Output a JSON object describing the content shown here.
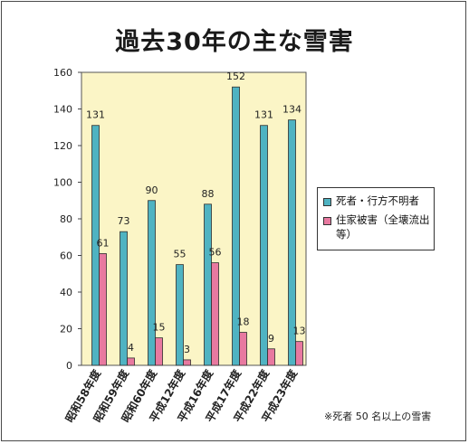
{
  "title": "過去30年の主な雪害",
  "footnote": "※死者 50 名以上の雪害",
  "chart_data": {
    "type": "bar",
    "categories": [
      "昭和58年度",
      "昭和59年度",
      "昭和60年度",
      "平成12年度",
      "平成16年度",
      "平成17年度",
      "平成22年度",
      "平成23年度"
    ],
    "series": [
      {
        "name": "死者・行方不明者",
        "color": "#4fb3c2",
        "values": [
          131,
          73,
          90,
          55,
          88,
          152,
          131,
          134
        ]
      },
      {
        "name": "住家被害（全壊流出等）",
        "color": "#e879a0",
        "values": [
          61,
          4,
          15,
          3,
          56,
          18,
          9,
          13
        ]
      }
    ],
    "y_ticks": [
      0,
      20,
      40,
      60,
      80,
      100,
      120,
      140,
      160
    ],
    "ylim": [
      0,
      160
    ],
    "grid": false,
    "legend_position": "right",
    "plot_background": "#fbf5c6"
  }
}
